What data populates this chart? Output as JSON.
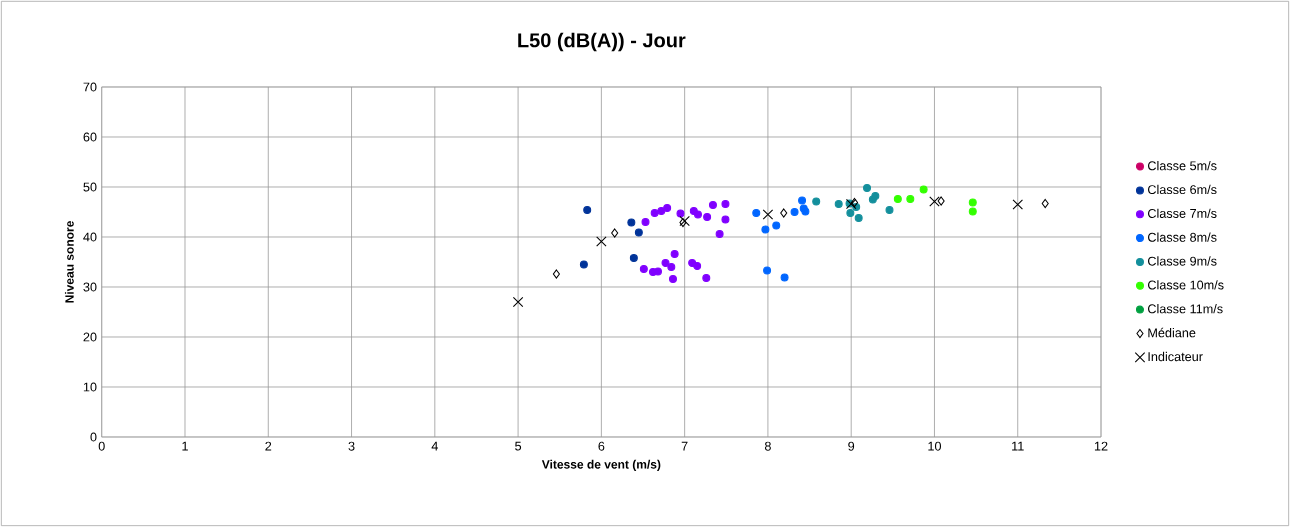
{
  "chart_data": {
    "type": "scatter",
    "title": "L50 (dB(A)) - Jour",
    "xlabel": "Vitesse de vent (m/s)",
    "ylabel": "Niveau sonore",
    "xlim": [
      0,
      12
    ],
    "ylim": [
      0,
      70
    ],
    "xticks": [
      0,
      1,
      2,
      3,
      4,
      5,
      6,
      7,
      8,
      9,
      10,
      11,
      12
    ],
    "yticks": [
      0,
      10,
      20,
      30,
      40,
      50,
      60,
      70
    ],
    "grid": true,
    "legend": "right",
    "series": [
      {
        "name": "Classe 5m/s",
        "color": "#cc0066",
        "marker": "circle"
      },
      {
        "name": "Classe 6m/s",
        "color": "#003399",
        "marker": "circle",
        "x": [
          5.83,
          6.36,
          6.45,
          5.79,
          6.39
        ],
        "values": [
          45.4,
          42.9,
          40.9,
          34.5,
          35.8
        ]
      },
      {
        "name": "Classe 7m/s",
        "color": "#8000ff",
        "marker": "circle",
        "x": [
          6.53,
          6.64,
          6.72,
          6.79,
          6.95,
          7.11,
          7.16,
          7.27,
          7.34,
          7.49,
          7.49,
          7.42,
          6.51,
          6.62,
          6.68,
          6.77,
          6.84,
          6.88,
          6.86,
          7.09,
          7.15,
          7.26
        ],
        "values": [
          43.0,
          44.8,
          45.2,
          45.8,
          44.7,
          45.2,
          44.5,
          44.0,
          46.4,
          46.6,
          43.5,
          40.6,
          33.6,
          33.0,
          33.1,
          34.8,
          34.0,
          36.6,
          31.6,
          34.8,
          34.2,
          31.8
        ]
      },
      {
        "name": "Classe 8m/s",
        "color": "#0066ff",
        "marker": "circle",
        "x": [
          7.86,
          7.97,
          8.1,
          7.99,
          8.2,
          8.32,
          8.41,
          8.43,
          8.45
        ],
        "values": [
          44.8,
          41.5,
          42.3,
          33.3,
          31.9,
          45.0,
          47.3,
          45.7,
          45.1
        ]
      },
      {
        "name": "Classe 9m/s",
        "color": "#138f9c",
        "marker": "circle",
        "x": [
          8.58,
          8.85,
          8.99,
          9.06,
          9.09,
          9.19,
          9.26,
          9.29,
          9.46,
          8.98
        ],
        "values": [
          47.1,
          46.6,
          44.8,
          46.0,
          43.8,
          49.8,
          47.5,
          48.2,
          45.4,
          46.7
        ]
      },
      {
        "name": "Classe 10m/s",
        "color": "#33ff00",
        "marker": "circle",
        "x": [
          9.56,
          9.71,
          9.87,
          10.46,
          10.46
        ],
        "values": [
          47.6,
          47.6,
          49.5,
          46.9,
          45.1
        ]
      },
      {
        "name": "Classe 11m/s",
        "color": "#00a040",
        "marker": "circle"
      },
      {
        "name": "Médiane",
        "color": "#000000",
        "marker": "diamond",
        "x": [
          5.46,
          6.16,
          6.98,
          8.19,
          9.04,
          10.08,
          11.33
        ],
        "values": [
          32.6,
          40.8,
          42.9,
          44.8,
          46.9,
          47.2,
          46.7
        ]
      },
      {
        "name": "Indicateur",
        "color": "#000000",
        "marker": "cross",
        "x": [
          5,
          6,
          7,
          8,
          9,
          10,
          11
        ],
        "values": [
          27.0,
          39.1,
          43.2,
          44.5,
          46.6,
          47.1,
          46.5
        ]
      }
    ]
  }
}
